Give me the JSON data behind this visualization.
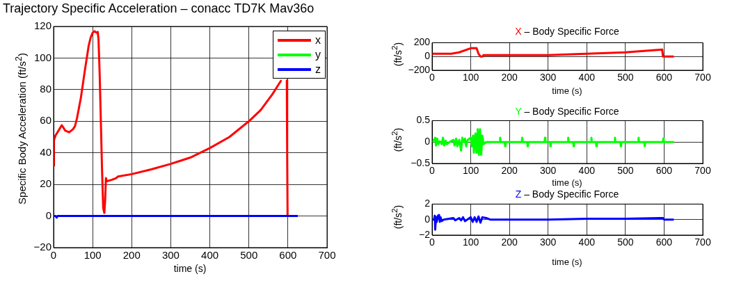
{
  "chart_data": [
    {
      "type": "line",
      "title": "Trajectory Specific Acceleration – conacc TD7K Mav36o",
      "xlabel": "time (s)",
      "ylabel": "Specific Body Acceleration (ft/s$^{2}$)",
      "xlim": [
        0,
        700
      ],
      "xticks": [
        0,
        100,
        200,
        300,
        400,
        500,
        600,
        700
      ],
      "ylim": [
        -20,
        120
      ],
      "yticks": [
        -20,
        0,
        20,
        40,
        60,
        80,
        100,
        120
      ],
      "grid": true,
      "legend": "top right",
      "series": [
        {
          "name": "x",
          "color": "#ff0000",
          "x": [
            0,
            1,
            5,
            10,
            15,
            21,
            25,
            30,
            40,
            50,
            55,
            60,
            70,
            80,
            90,
            95,
            100,
            105,
            110,
            113,
            115,
            118,
            121,
            124,
            127,
            130,
            132,
            134,
            136,
            150,
            160,
            165,
            200,
            250,
            300,
            350,
            400,
            450,
            500,
            530,
            560,
            583,
            590,
            597,
            598,
            599,
            625
          ],
          "values": [
            32,
            48,
            51,
            53,
            55,
            57.5,
            56,
            54,
            53,
            55,
            57,
            62,
            75,
            92,
            108,
            113,
            116,
            117,
            116,
            116.5,
            112,
            90,
            60,
            30,
            5,
            2,
            10,
            24,
            22,
            23,
            24,
            25,
            26.5,
            29.5,
            33,
            37,
            43,
            50,
            60,
            67,
            77,
            86,
            null,
            86,
            40,
            0,
            0
          ]
        },
        {
          "name": "y",
          "color": "#00ff00"
        },
        {
          "name": "z",
          "color": "#0000ff",
          "x": [
            0,
            5,
            8,
            10,
            625
          ],
          "values": [
            0,
            0,
            -1,
            0,
            0
          ]
        }
      ]
    },
    {
      "type": "line",
      "title": "X – Body Specific Force",
      "xlabel": "time (s)",
      "ylabel": "(ft/s$^{2}$)",
      "xlim": [
        0,
        700
      ],
      "xticks": [
        0,
        100,
        200,
        300,
        400,
        500,
        600,
        700
      ],
      "ylim": [
        -200,
        200
      ],
      "yticks": [
        -200,
        0,
        200
      ],
      "grid": true,
      "series": [
        {
          "color": "#ff0000",
          "x": [
            0,
            20,
            50,
            70,
            100,
            115,
            120,
            125,
            130,
            133,
            200,
            300,
            400,
            500,
            595,
            597,
            625
          ],
          "values": [
            40,
            40,
            40,
            60,
            120,
            120,
            40,
            0,
            0,
            20,
            20,
            20,
            40,
            60,
            100,
            0,
            0
          ]
        }
      ]
    },
    {
      "type": "line",
      "title": "Y – Body Specific Force",
      "xlabel": "time (s)",
      "ylabel": "(ft/s$^{2}$)",
      "xlim": [
        0,
        700
      ],
      "xticks": [
        0,
        100,
        200,
        300,
        400,
        500,
        600,
        700
      ],
      "ylim": [
        -0.5,
        0.5
      ],
      "yticks": [
        -0.5,
        0,
        0.5
      ],
      "grid": true,
      "series": [
        {
          "color": "#00ff00",
          "x": [
            0,
            5,
            8,
            10,
            13,
            16,
            20,
            25,
            28,
            31,
            35,
            38,
            45,
            55,
            58,
            62,
            65,
            70,
            75,
            78,
            82,
            85,
            88,
            92,
            100,
            103,
            106,
            108,
            112,
            115,
            118,
            121,
            124,
            127,
            130,
            133,
            140,
            175,
            176,
            177,
            188,
            189,
            190,
            232,
            233,
            234,
            246,
            247,
            248,
            291,
            292,
            293,
            305,
            306,
            307,
            351,
            352,
            353,
            365,
            366,
            367,
            411,
            412,
            413,
            424,
            425,
            426,
            472,
            473,
            474,
            487,
            488,
            489,
            533,
            534,
            535,
            549,
            550,
            551,
            597,
            598,
            599,
            625
          ],
          "values": [
            0,
            0.05,
            0.1,
            -0.08,
            0.08,
            -0.05,
            0.02,
            -0.05,
            0.1,
            -0.08,
            0.03,
            -0.05,
            0,
            0.05,
            -0.08,
            0.08,
            -0.1,
            0.05,
            -0.2,
            0.1,
            0,
            0.08,
            -0.1,
            0.05,
            0.1,
            -0.1,
            0.15,
            -0.25,
            0.2,
            -0.25,
            0.3,
            -0.3,
            0.3,
            -0.3,
            0.15,
            -0.05,
            0,
            0,
            0.1,
            0,
            0,
            -0.1,
            0,
            0,
            0.1,
            0,
            0,
            -0.1,
            0,
            0,
            0.1,
            0,
            0,
            -0.1,
            0,
            0,
            0.1,
            0,
            0,
            -0.1,
            0,
            0,
            0.1,
            0,
            0,
            -0.1,
            0,
            0,
            0.1,
            0,
            0,
            -0.1,
            0,
            0,
            0.1,
            0,
            0,
            -0.1,
            0,
            0,
            0.08,
            0,
            0
          ]
        }
      ]
    },
    {
      "type": "line",
      "title": "Z – Body Specific Force",
      "xlabel": "time (s)",
      "ylabel": "(ft/s$^{2}$)",
      "xlim": [
        0,
        700
      ],
      "xticks": [
        0,
        100,
        200,
        300,
        400,
        500,
        600,
        700
      ],
      "ylim": [
        -2,
        2
      ],
      "yticks": [
        -2,
        0,
        2
      ],
      "grid": true,
      "series": [
        {
          "color": "#0000ff",
          "x": [
            0,
            5,
            7,
            8,
            10,
            12,
            15,
            18,
            20,
            22,
            25,
            30,
            55,
            60,
            70,
            75,
            80,
            85,
            100,
            105,
            110,
            115,
            120,
            125,
            130,
            140,
            150,
            300,
            400,
            500,
            590,
            597,
            600,
            625
          ],
          "values": [
            0,
            0,
            0.5,
            -1.3,
            0.3,
            -0.3,
            0.5,
            0.6,
            -0.3,
            0.3,
            -0.2,
            0,
            0.2,
            -0.1,
            0.2,
            -0.1,
            0.3,
            -0.2,
            0.3,
            -0.3,
            0.3,
            -0.3,
            0.4,
            -0.4,
            0.3,
            0.2,
            0,
            0,
            0.1,
            0.1,
            0.2,
            0.2,
            0,
            0
          ]
        }
      ]
    }
  ]
}
